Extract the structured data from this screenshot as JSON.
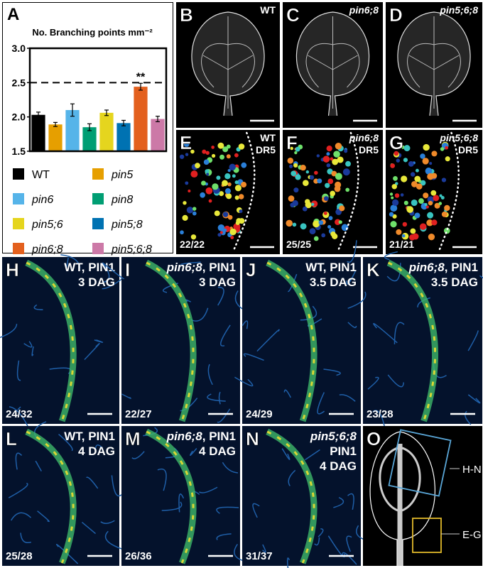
{
  "chart_data": {
    "type": "bar",
    "panel_letter": "A",
    "title": "No. Branching points mm⁻²",
    "categories": [
      "WT",
      "pin5",
      "pin6",
      "pin8",
      "pin5;6",
      "pin5;8",
      "pin6;8",
      "pin5;6;8"
    ],
    "values": [
      2.03,
      1.89,
      2.1,
      1.85,
      2.06,
      1.91,
      2.44,
      1.97
    ],
    "errors": [
      0.04,
      0.03,
      0.09,
      0.05,
      0.04,
      0.04,
      0.05,
      0.04
    ],
    "colors": [
      "#000000",
      "#e69f00",
      "#56b4e9",
      "#009e73",
      "#e5d51e",
      "#0072b2",
      "#e3601e",
      "#cc79a7"
    ],
    "ylim": [
      1.5,
      3.0
    ],
    "yticks": [
      {
        "value": 1.5,
        "label": "1.5"
      },
      {
        "value": 2.0,
        "label": "2.0"
      },
      {
        "value": 2.5,
        "label": "2.5"
      },
      {
        "value": 3.0,
        "label": "3.0"
      }
    ],
    "dashed_line": 2.5,
    "annotation": "**",
    "annotation_category": "pin6;8"
  },
  "panels": [
    {
      "letter": "B",
      "lines": [
        [
          "WT"
        ]
      ]
    },
    {
      "letter": "C",
      "lines": [
        [
          "pin6;8"
        ]
      ]
    },
    {
      "letter": "D",
      "lines": [
        [
          "pin5;6;8"
        ]
      ]
    },
    {
      "letter": "E",
      "lines": [
        [
          "WT"
        ],
        [
          "DR5"
        ]
      ],
      "count": "22/22"
    },
    {
      "letter": "F",
      "lines": [
        [
          "pin6;8"
        ],
        [
          "DR5"
        ]
      ],
      "count": "25/25"
    },
    {
      "letter": "G",
      "lines": [
        [
          "pin5;6;8"
        ],
        [
          "DR5"
        ]
      ],
      "count": "21/21"
    },
    {
      "letter": "H",
      "lines": [
        [
          "WT, PIN1"
        ],
        [
          "3 DAG"
        ]
      ],
      "count": "24/32"
    },
    {
      "letter": "I",
      "lines": [
        [
          "pin6;8",
          ", PIN1"
        ],
        [
          "3 DAG"
        ]
      ],
      "count": "22/27"
    },
    {
      "letter": "J",
      "lines": [
        [
          "WT, PIN1"
        ],
        [
          "3.5 DAG"
        ]
      ],
      "count": "24/29"
    },
    {
      "letter": "K",
      "lines": [
        [
          "pin6;8",
          ", PIN1"
        ],
        [
          "3.5 DAG"
        ]
      ],
      "count": "23/28"
    },
    {
      "letter": "L",
      "lines": [
        [
          "WT, PIN1"
        ],
        [
          "4 DAG"
        ]
      ],
      "count": "25/28"
    },
    {
      "letter": "M",
      "lines": [
        [
          "pin6;8",
          ", PIN1"
        ],
        [
          "4 DAG"
        ]
      ],
      "count": "26/36"
    },
    {
      "letter": "N",
      "lines": [
        [
          "pin5;6;8"
        ],
        [
          "PIN1"
        ],
        [
          "4 DAG"
        ]
      ],
      "count": "31/37"
    },
    {
      "letter": "O",
      "lines": [],
      "box_labels": [
        "H-N",
        "E-G"
      ]
    }
  ]
}
